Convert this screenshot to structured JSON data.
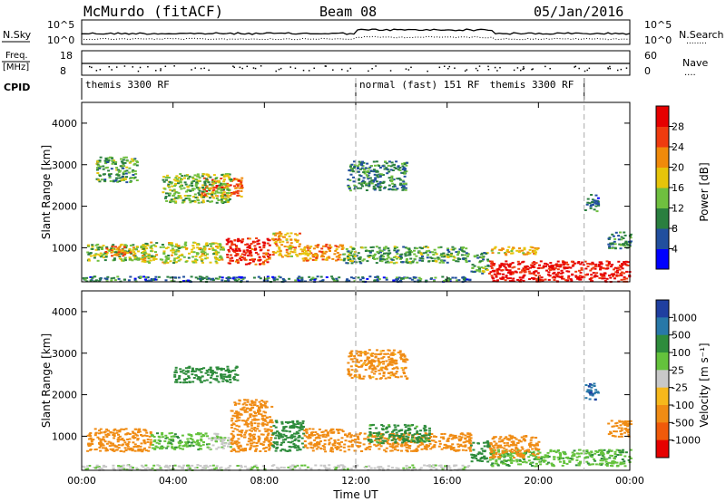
{
  "header": {
    "station": "McMurdo (fitACF)",
    "beam": "Beam 08",
    "date": "05/Jan/2016"
  },
  "strip_labels": {
    "nsky": "N.Sky",
    "nsearch": "N.Search",
    "nsearch_dots": "........",
    "freq_top": "Freq.",
    "freq_unit": "[MHz]",
    "nave": "Nave",
    "nave_dots": "....",
    "cpid": "CPID",
    "noise_ticks": [
      "10^5",
      "10^0"
    ],
    "noise_ticks_right": [
      "10^5",
      "10^0"
    ],
    "freq_ticks": [
      "18",
      "8"
    ],
    "nave_ticks": [
      "60",
      "0"
    ]
  },
  "cpid_segments": [
    {
      "label": "themis 3300 RF",
      "start_hour": 0
    },
    {
      "label": "normal (fast) 151 RF",
      "start_hour": 12
    },
    {
      "label": "themis 3300 RF",
      "start_hour": 22
    }
  ],
  "x_axis": {
    "label": "Time UT",
    "range_hours": [
      0,
      24
    ],
    "ticks": [
      {
        "hour": 0,
        "label": "00:00"
      },
      {
        "hour": 4,
        "label": "04:00"
      },
      {
        "hour": 8,
        "label": "08:00"
      },
      {
        "hour": 12,
        "label": "12:00"
      },
      {
        "hour": 16,
        "label": "16:00"
      },
      {
        "hour": 20,
        "label": "20:00"
      },
      {
        "hour": 24,
        "label": "00:00"
      }
    ]
  },
  "y_axis": {
    "label": "Slant Range [km]",
    "range_km": [
      180,
      4500
    ],
    "ticks": [
      "1000",
      "2000",
      "3000",
      "4000"
    ],
    "tick_values": [
      1000,
      2000,
      3000,
      4000
    ]
  },
  "power_scale": {
    "label": "Power [dB]",
    "ticks": [
      "4",
      "8",
      "12",
      "16",
      "20",
      "24",
      "28"
    ],
    "colors": [
      "#0000ff",
      "#214f9e",
      "#2a7f3f",
      "#6fbf3f",
      "#e6c40a",
      "#f08a0a",
      "#ef3b0f",
      "#e60000"
    ]
  },
  "velocity_scale": {
    "label": "Velocity [m s⁻¹]",
    "ticks": [
      "1000",
      "500",
      "100",
      "25",
      "-25",
      "-100",
      "-500",
      "-1000"
    ],
    "colors": [
      "#1f3fa0",
      "#2878a8",
      "#2e8c3c",
      "#64c23c",
      "#c8c8c8",
      "#f6b81c",
      "#f08c14",
      "#f05a0a",
      "#e60000"
    ]
  },
  "chart_data": [
    {
      "type": "heatmap",
      "title": "Power [dB]",
      "xlabel": "Time UT",
      "ylabel": "Slant Range [km]",
      "x_range_hours": [
        0,
        24
      ],
      "y_range_km": [
        180,
        4500
      ],
      "regions": [
        {
          "t0": 0.2,
          "t1": 3.0,
          "r0": 700,
          "r1": 1100,
          "db": 14
        },
        {
          "t0": 1.0,
          "t1": 2.3,
          "r0": 820,
          "r1": 1050,
          "db": 22
        },
        {
          "t0": 2.6,
          "t1": 6.2,
          "r0": 650,
          "r1": 1150,
          "db": 16
        },
        {
          "t0": 6.3,
          "t1": 8.2,
          "r0": 620,
          "r1": 1250,
          "db": 28
        },
        {
          "t0": 5.2,
          "t1": 7.0,
          "r0": 2250,
          "r1": 2700,
          "db": 24
        },
        {
          "t0": 3.5,
          "t1": 6.5,
          "r0": 2100,
          "r1": 2800,
          "db": 14
        },
        {
          "t0": 8.3,
          "t1": 9.5,
          "r0": 800,
          "r1": 1400,
          "db": 20
        },
        {
          "t0": 9.5,
          "t1": 11.4,
          "r0": 700,
          "r1": 1100,
          "db": 22
        },
        {
          "t0": 0.6,
          "t1": 2.4,
          "r0": 2600,
          "r1": 3200,
          "db": 12
        },
        {
          "t0": 11.4,
          "t1": 17.0,
          "r0": 650,
          "r1": 1050,
          "db": 12
        },
        {
          "t0": 17.0,
          "t1": 17.8,
          "r0": 400,
          "r1": 900,
          "db": 12
        },
        {
          "t0": 11.6,
          "t1": 14.2,
          "r0": 2400,
          "r1": 3100,
          "db": 10
        },
        {
          "t0": 17.8,
          "t1": 24.0,
          "r0": 200,
          "r1": 700,
          "db": 30
        },
        {
          "t0": 17.9,
          "t1": 20.0,
          "r0": 850,
          "r1": 1050,
          "db": 20
        },
        {
          "t0": 22.0,
          "t1": 22.6,
          "r0": 1900,
          "r1": 2300,
          "db": 8
        },
        {
          "t0": 23.0,
          "t1": 24.0,
          "r0": 1000,
          "r1": 1400,
          "db": 10
        },
        {
          "t0": 0.0,
          "t1": 17.0,
          "r0": 200,
          "r1": 330,
          "db": 8
        }
      ]
    },
    {
      "type": "heatmap",
      "title": "Velocity [m s-1]",
      "xlabel": "Time UT",
      "ylabel": "Slant Range [km]",
      "x_range_hours": [
        0,
        24
      ],
      "y_range_km": [
        180,
        4500
      ],
      "regions": [
        {
          "t0": 0.2,
          "t1": 3.0,
          "r0": 650,
          "r1": 1200,
          "v": -300
        },
        {
          "t0": 3.0,
          "t1": 5.5,
          "r0": 700,
          "r1": 1100,
          "v": 80
        },
        {
          "t0": 5.5,
          "t1": 6.5,
          "r0": 700,
          "r1": 1100,
          "v": 20
        },
        {
          "t0": 6.5,
          "t1": 8.3,
          "r0": 650,
          "r1": 1900,
          "v": -300
        },
        {
          "t0": 4.0,
          "t1": 6.8,
          "r0": 2300,
          "r1": 2700,
          "v": 200
        },
        {
          "t0": 8.3,
          "t1": 9.7,
          "r0": 650,
          "r1": 1400,
          "v": 300
        },
        {
          "t0": 9.7,
          "t1": 11.4,
          "r0": 650,
          "r1": 1200,
          "v": -300
        },
        {
          "t0": 11.4,
          "t1": 17.0,
          "r0": 650,
          "r1": 1100,
          "v": -200
        },
        {
          "t0": 12.5,
          "t1": 15.2,
          "r0": 850,
          "r1": 1300,
          "v": 150
        },
        {
          "t0": 17.0,
          "t1": 17.8,
          "r0": 400,
          "r1": 900,
          "v": 300
        },
        {
          "t0": 17.8,
          "t1": 24.0,
          "r0": 300,
          "r1": 700,
          "v": 80
        },
        {
          "t0": 17.8,
          "t1": 20.0,
          "r0": 500,
          "r1": 1050,
          "v": -300
        },
        {
          "t0": 22.0,
          "t1": 22.6,
          "r0": 1900,
          "r1": 2300,
          "v": 900
        },
        {
          "t0": 23.0,
          "t1": 24.0,
          "r0": 1000,
          "r1": 1400,
          "v": -300
        },
        {
          "t0": 11.6,
          "t1": 14.2,
          "r0": 2400,
          "r1": 3100,
          "v": -150
        },
        {
          "t0": 0.0,
          "t1": 17.0,
          "r0": 200,
          "r1": 330,
          "v": 10
        }
      ]
    }
  ]
}
